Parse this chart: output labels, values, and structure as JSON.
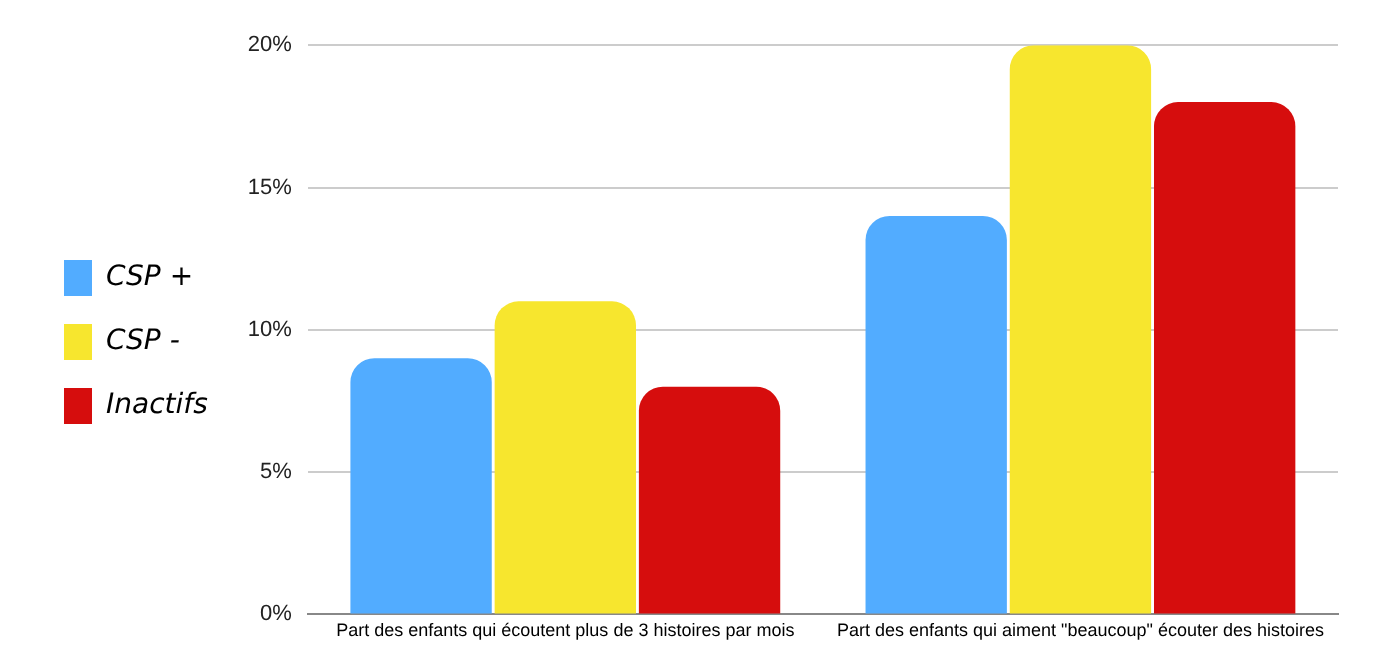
{
  "chart_data": {
    "type": "bar",
    "categories": [
      "Part des enfants qui écoutent plus de 3 histoires par mois",
      "Part des enfants qui aiment \"beaucoup\" écouter des histoires"
    ],
    "series": [
      {
        "name": "CSP +",
        "color": "#52acff",
        "values": [
          9,
          14
        ]
      },
      {
        "name": "CSP -",
        "color": "#f7e62e",
        "values": [
          11,
          20
        ]
      },
      {
        "name": "Inactifs",
        "color": "#d60d0d",
        "values": [
          8,
          18
        ]
      }
    ],
    "ylim": [
      0,
      20
    ],
    "yticks": [
      {
        "value": 0,
        "label": "0%"
      },
      {
        "value": 5,
        "label": "5%"
      },
      {
        "value": 10,
        "label": "10%"
      },
      {
        "value": 15,
        "label": "15%"
      },
      {
        "value": 20,
        "label": "20%"
      }
    ],
    "grid": "y",
    "legend": "left"
  }
}
